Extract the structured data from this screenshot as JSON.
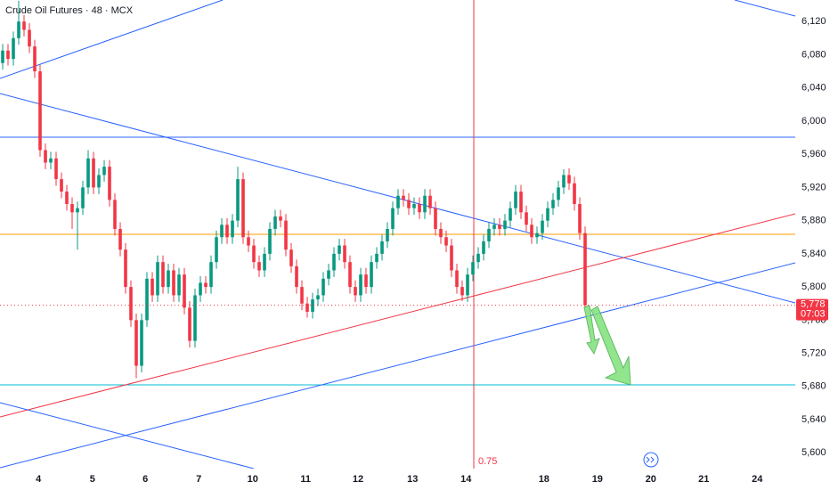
{
  "chart_data": {
    "type": "candlestick",
    "title": "Crude Oil Futures · 48 · MCX",
    "last_price_label": "5,778",
    "countdown": "07:03",
    "marker_label": "0.75",
    "up_color": "#089981",
    "down_color": "#f23645",
    "xlim": [
      -0.5,
      148.33
    ],
    "ylim": [
      5581,
      6146
    ],
    "xticks": [
      {
        "value": 6.7,
        "label": "4"
      },
      {
        "value": 16.8,
        "label": "5"
      },
      {
        "value": 26.7,
        "label": "6"
      },
      {
        "value": 36.7,
        "label": "7"
      },
      {
        "value": 46.8,
        "label": "10"
      },
      {
        "value": 56.7,
        "label": "11"
      },
      {
        "value": 66.5,
        "label": "12"
      },
      {
        "value": 76.7,
        "label": "13"
      },
      {
        "value": 86.7,
        "label": "14"
      },
      {
        "value": 101.3,
        "label": "18"
      },
      {
        "value": 111.3,
        "label": "19"
      },
      {
        "value": 121.3,
        "label": "20"
      },
      {
        "value": 131.2,
        "label": "21"
      },
      {
        "value": 141.2,
        "label": "24"
      }
    ],
    "yticks": [
      {
        "value": 5600,
        "label": "5,600"
      },
      {
        "value": 5640,
        "label": "5,640"
      },
      {
        "value": 5680,
        "label": "5,680"
      },
      {
        "value": 5720,
        "label": "5,720"
      },
      {
        "value": 5760,
        "label": "5,760"
      },
      {
        "value": 5800,
        "label": "5,800"
      },
      {
        "value": 5840,
        "label": "5,840"
      },
      {
        "value": 5880,
        "label": "5,880"
      },
      {
        "value": 5920,
        "label": "5,920"
      },
      {
        "value": 5960,
        "label": "5,960"
      },
      {
        "value": 6000,
        "label": "6,000"
      },
      {
        "value": 6040,
        "label": "6,040"
      },
      {
        "value": 6080,
        "label": "6,080"
      },
      {
        "value": 6120,
        "label": "6,120"
      }
    ],
    "x": [
      0,
      1,
      2,
      3,
      4,
      5,
      6,
      7,
      8,
      9,
      10,
      11,
      12,
      13,
      14,
      15,
      16,
      17,
      18,
      19,
      20,
      21,
      22,
      23,
      24,
      25,
      26,
      27,
      28,
      29,
      30,
      31,
      32,
      33,
      34,
      35,
      36,
      37,
      38,
      39,
      40,
      41,
      42,
      43,
      44,
      45,
      46,
      47,
      48,
      49,
      50,
      51,
      52,
      53,
      54,
      55,
      56,
      57,
      58,
      59,
      60,
      61,
      62,
      63,
      64,
      65,
      66,
      67,
      68,
      69,
      70,
      71,
      72,
      73,
      74,
      75,
      76,
      77,
      78,
      79,
      80,
      81,
      82,
      83,
      84,
      85,
      86,
      87,
      88,
      89,
      90,
      91,
      92,
      93,
      94,
      95,
      96,
      97,
      98,
      99,
      100,
      101,
      102,
      103,
      104,
      105,
      106,
      107,
      108,
      109
    ],
    "open": [
      6070,
      6085,
      6075,
      6100,
      6120,
      6110,
      6090,
      6060,
      5965,
      5950,
      5955,
      5930,
      5915,
      5900,
      5890,
      5895,
      5920,
      5955,
      5920,
      5935,
      5945,
      5905,
      5870,
      5845,
      5800,
      5760,
      5705,
      5760,
      5810,
      5790,
      5830,
      5800,
      5820,
      5790,
      5815,
      5775,
      5735,
      5790,
      5805,
      5800,
      5830,
      5860,
      5875,
      5860,
      5880,
      5930,
      5860,
      5850,
      5830,
      5820,
      5840,
      5870,
      5885,
      5880,
      5845,
      5825,
      5800,
      5780,
      5770,
      5785,
      5790,
      5810,
      5820,
      5840,
      5850,
      5830,
      5800,
      5790,
      5815,
      5800,
      5830,
      5840,
      5855,
      5870,
      5895,
      5910,
      5905,
      5895,
      5900,
      5890,
      5910,
      5895,
      5870,
      5860,
      5850,
      5820,
      5800,
      5790,
      5815,
      5830,
      5840,
      5855,
      5870,
      5875,
      5870,
      5880,
      5895,
      5915,
      5890,
      5875,
      5860,
      5865,
      5880,
      5895,
      5905,
      5920,
      5935,
      5925,
      5900,
      5865
    ],
    "high": [
      6093,
      6093,
      6108,
      6145,
      6128,
      6118,
      6098,
      6068,
      5973,
      5963,
      5963,
      5938,
      5923,
      5908,
      5903,
      5928,
      5965,
      5963,
      5943,
      5953,
      5953,
      5913,
      5878,
      5853,
      5808,
      5768,
      5768,
      5818,
      5818,
      5838,
      5838,
      5828,
      5828,
      5823,
      5823,
      5783,
      5798,
      5813,
      5813,
      5838,
      5868,
      5883,
      5883,
      5888,
      5945,
      5938,
      5868,
      5858,
      5838,
      5848,
      5878,
      5893,
      5893,
      5888,
      5853,
      5833,
      5808,
      5788,
      5793,
      5798,
      5818,
      5828,
      5848,
      5858,
      5858,
      5838,
      5808,
      5823,
      5823,
      5838,
      5848,
      5863,
      5878,
      5903,
      5918,
      5918,
      5913,
      5908,
      5908,
      5918,
      5918,
      5903,
      5878,
      5868,
      5858,
      5828,
      5808,
      5823,
      5838,
      5848,
      5863,
      5878,
      5883,
      5883,
      5888,
      5903,
      5923,
      5923,
      5898,
      5883,
      5873,
      5888,
      5903,
      5913,
      5928,
      5942,
      5943,
      5933,
      5908,
      5873
    ],
    "low": [
      6062,
      6067,
      6067,
      6092,
      6102,
      6082,
      6052,
      5957,
      5942,
      5942,
      5922,
      5907,
      5892,
      5870,
      5845,
      5887,
      5912,
      5912,
      5912,
      5927,
      5897,
      5862,
      5837,
      5792,
      5752,
      5690,
      5697,
      5752,
      5782,
      5782,
      5792,
      5792,
      5782,
      5782,
      5767,
      5727,
      5727,
      5782,
      5792,
      5792,
      5822,
      5852,
      5852,
      5852,
      5872,
      5852,
      5842,
      5822,
      5812,
      5812,
      5832,
      5862,
      5872,
      5837,
      5817,
      5792,
      5772,
      5763,
      5762,
      5777,
      5782,
      5802,
      5812,
      5832,
      5822,
      5792,
      5782,
      5782,
      5792,
      5792,
      5822,
      5832,
      5847,
      5862,
      5887,
      5897,
      5887,
      5887,
      5882,
      5882,
      5887,
      5862,
      5852,
      5842,
      5812,
      5792,
      5783,
      5782,
      5807,
      5822,
      5832,
      5847,
      5862,
      5862,
      5862,
      5872,
      5887,
      5882,
      5867,
      5852,
      5852,
      5857,
      5872,
      5887,
      5897,
      5912,
      5917,
      5892,
      5857,
      5775
    ],
    "close": [
      6085,
      6075,
      6100,
      6120,
      6110,
      6090,
      6060,
      5965,
      5950,
      5955,
      5930,
      5915,
      5900,
      5890,
      5895,
      5920,
      5955,
      5920,
      5935,
      5945,
      5905,
      5870,
      5845,
      5800,
      5760,
      5705,
      5760,
      5810,
      5790,
      5830,
      5800,
      5820,
      5790,
      5815,
      5775,
      5735,
      5790,
      5805,
      5800,
      5830,
      5860,
      5875,
      5860,
      5880,
      5930,
      5860,
      5850,
      5830,
      5820,
      5840,
      5870,
      5885,
      5880,
      5845,
      5825,
      5800,
      5780,
      5770,
      5785,
      5790,
      5810,
      5820,
      5840,
      5850,
      5830,
      5800,
      5790,
      5815,
      5800,
      5830,
      5840,
      5855,
      5870,
      5895,
      5910,
      5905,
      5895,
      5900,
      5890,
      5910,
      5895,
      5870,
      5860,
      5850,
      5820,
      5800,
      5790,
      5815,
      5830,
      5840,
      5855,
      5870,
      5875,
      5870,
      5880,
      5895,
      5915,
      5890,
      5875,
      5860,
      5865,
      5880,
      5895,
      5905,
      5920,
      5935,
      5925,
      5900,
      5865,
      5778
    ]
  }
}
